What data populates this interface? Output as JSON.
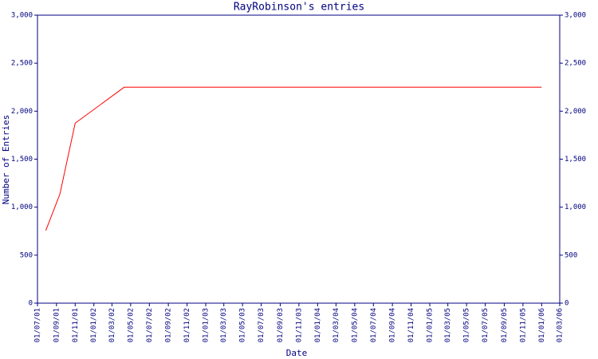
{
  "chart_data": {
    "type": "line",
    "title": "RayRobinson's entries",
    "x_label": "Date",
    "y_label": "Number of Entries",
    "x": [
      "28/07/01",
      "12/09/01",
      "01/11/01",
      "10/04/02",
      "01/01/06"
    ],
    "values": [
      755,
      1135,
      1875,
      2250,
      2250
    ],
    "color": "#ff0000",
    "xlim": [
      "01/07/01",
      "01/03/06"
    ],
    "xticks": [
      "01/07/01",
      "01/09/01",
      "01/11/01",
      "01/01/02",
      "01/03/02",
      "01/05/02",
      "01/07/02",
      "01/09/02",
      "01/11/02",
      "01/01/03",
      "01/03/03",
      "01/05/03",
      "01/07/03",
      "01/09/03",
      "01/11/03",
      "01/01/04",
      "01/03/04",
      "01/05/04",
      "01/07/04",
      "01/09/04",
      "01/11/04",
      "01/01/05",
      "01/03/05",
      "01/05/05",
      "01/07/05",
      "01/09/05",
      "01/11/05",
      "01/01/06",
      "01/03/06"
    ],
    "ylim": [
      0,
      3000
    ],
    "yticks": [
      0,
      500,
      {
        "value": 1000,
        "label": "1,000"
      },
      {
        "value": 1500,
        "label": "1,500"
      },
      {
        "value": 2000,
        "label": "2,000"
      },
      {
        "value": 2500,
        "label": "2,500"
      },
      {
        "value": 3000,
        "label": "3,000"
      }
    ],
    "right_axis": true
  }
}
